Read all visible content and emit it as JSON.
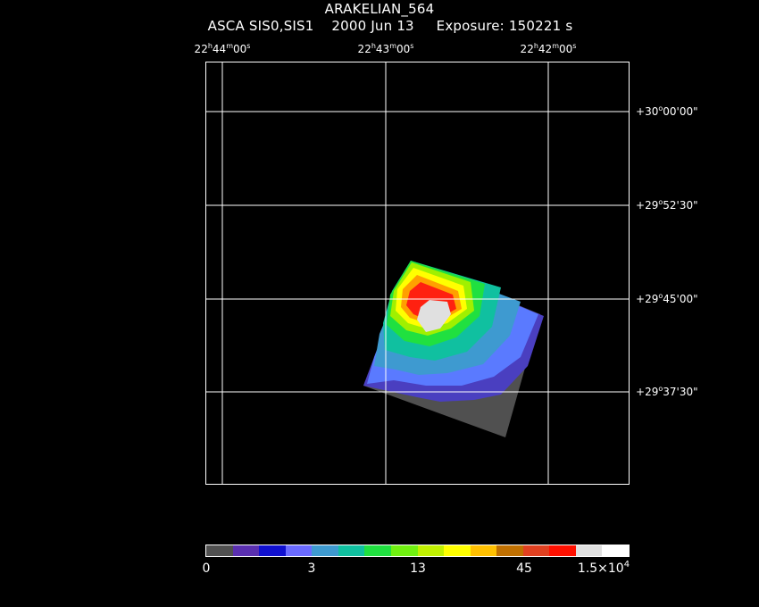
{
  "title": {
    "line1": "ARAKELIAN_564",
    "line2": "ASCA SIS0,SIS1    2000 Jun 13     Exposure: 150221 s"
  },
  "ra_ticks": [
    {
      "h": "22",
      "m": "44",
      "s": "00"
    },
    {
      "h": "22",
      "m": "43",
      "s": "00"
    },
    {
      "h": "22",
      "m": "42",
      "s": "00"
    }
  ],
  "dec_ticks": [
    {
      "sign": "+",
      "d": "30",
      "m": "00",
      "s": "00"
    },
    {
      "sign": "+",
      "d": "29",
      "m": "52",
      "s": "30"
    },
    {
      "sign": "+",
      "d": "29",
      "m": "45",
      "s": "00"
    },
    {
      "sign": "+",
      "d": "29",
      "m": "37",
      "s": "30"
    }
  ],
  "colorbar": {
    "colors": [
      "#505050",
      "#5a2fb0",
      "#1010d0",
      "#6a6aff",
      "#3e9ad0",
      "#10c0a0",
      "#20e040",
      "#70f010",
      "#c0f000",
      "#ffff00",
      "#ffc000",
      "#c07000",
      "#e04020",
      "#ff1000",
      "#e0e0e0",
      "#ffffff"
    ],
    "tick_labels": {
      "t0": "0",
      "t3": "3",
      "t13": "13",
      "t45": "45",
      "tmax_base": "1.5×10",
      "tmax_exp": "4"
    }
  }
}
